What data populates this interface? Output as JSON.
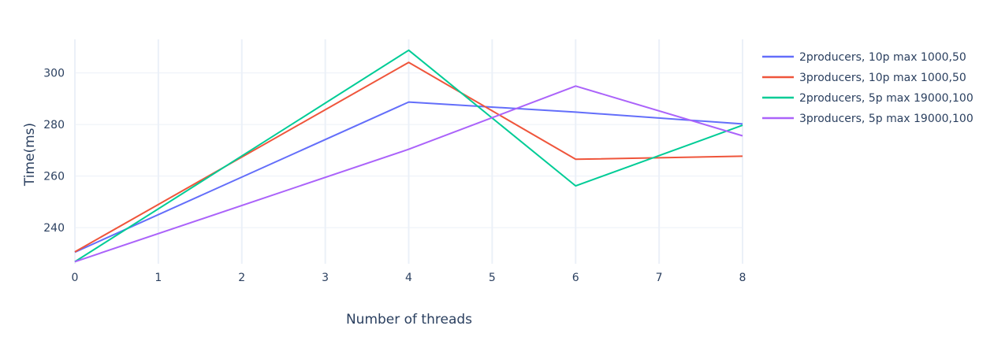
{
  "chart_data": {
    "type": "line",
    "xlabel": "Number of threads",
    "ylabel": "Time(ms)",
    "xlim": [
      0,
      8
    ],
    "ylim": [
      226,
      313
    ],
    "x_ticks": [
      0,
      1,
      2,
      3,
      4,
      5,
      6,
      7,
      8
    ],
    "y_ticks": [
      240,
      260,
      280,
      300
    ],
    "grid": true,
    "legend_position": "right",
    "series": [
      {
        "name": "2producers, 10p max 1000,50",
        "color": "#636efa",
        "x": [
          0,
          4,
          6,
          8
        ],
        "y": [
          230.5,
          288.7,
          284.8,
          280.2
        ]
      },
      {
        "name": "3producers, 10p max 1000,50",
        "color": "#ef553b",
        "x": [
          0,
          4,
          6,
          8
        ],
        "y": [
          230.6,
          304.1,
          266.5,
          267.7
        ]
      },
      {
        "name": "2producers, 5p max 19000,100",
        "color": "#00cc96",
        "x": [
          0,
          4,
          6,
          8
        ],
        "y": [
          226.8,
          308.8,
          256.2,
          279.7
        ]
      },
      {
        "name": "3producers, 5p max 19000,100",
        "color": "#ab63fa",
        "x": [
          0,
          4,
          6,
          8
        ],
        "y": [
          226.8,
          270.4,
          294.9,
          275.6
        ]
      }
    ]
  }
}
